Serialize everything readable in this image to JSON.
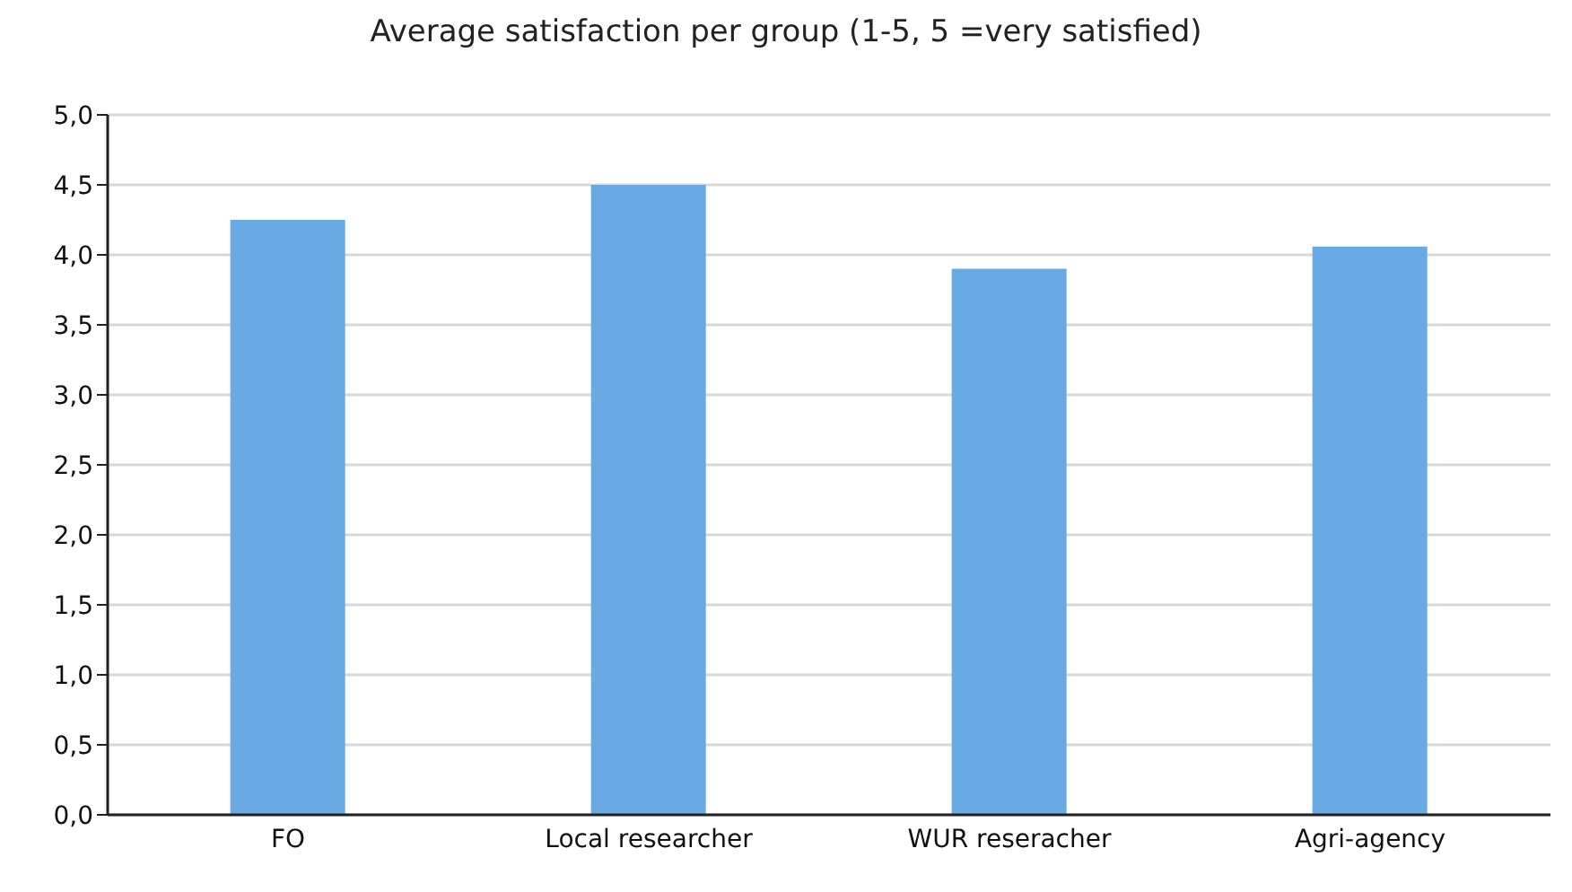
{
  "chart_data": {
    "type": "bar",
    "title": "Average satisfaction per group (1-5, 5 =very satisfied)",
    "categories": [
      "FO",
      "Local researcher",
      "WUR reseracher",
      "Agri-agency"
    ],
    "values": [
      4.25,
      4.5,
      3.9,
      4.06
    ],
    "color": "#6aaae4",
    "ylim": [
      0,
      5
    ],
    "yticks": [
      {
        "value": 0,
        "label": "0,0"
      },
      {
        "value": 0.5,
        "label": "0,5"
      },
      {
        "value": 1,
        "label": "1,0"
      },
      {
        "value": 1.5,
        "label": "1,5"
      },
      {
        "value": 2,
        "label": "2,0"
      },
      {
        "value": 2.5,
        "label": "2,5"
      },
      {
        "value": 3,
        "label": "3,0"
      },
      {
        "value": 3.5,
        "label": "3,5"
      },
      {
        "value": 4,
        "label": "4,0"
      },
      {
        "value": 4.5,
        "label": "4,5"
      },
      {
        "value": 5,
        "label": "5,0"
      }
    ],
    "grid": "y"
  }
}
